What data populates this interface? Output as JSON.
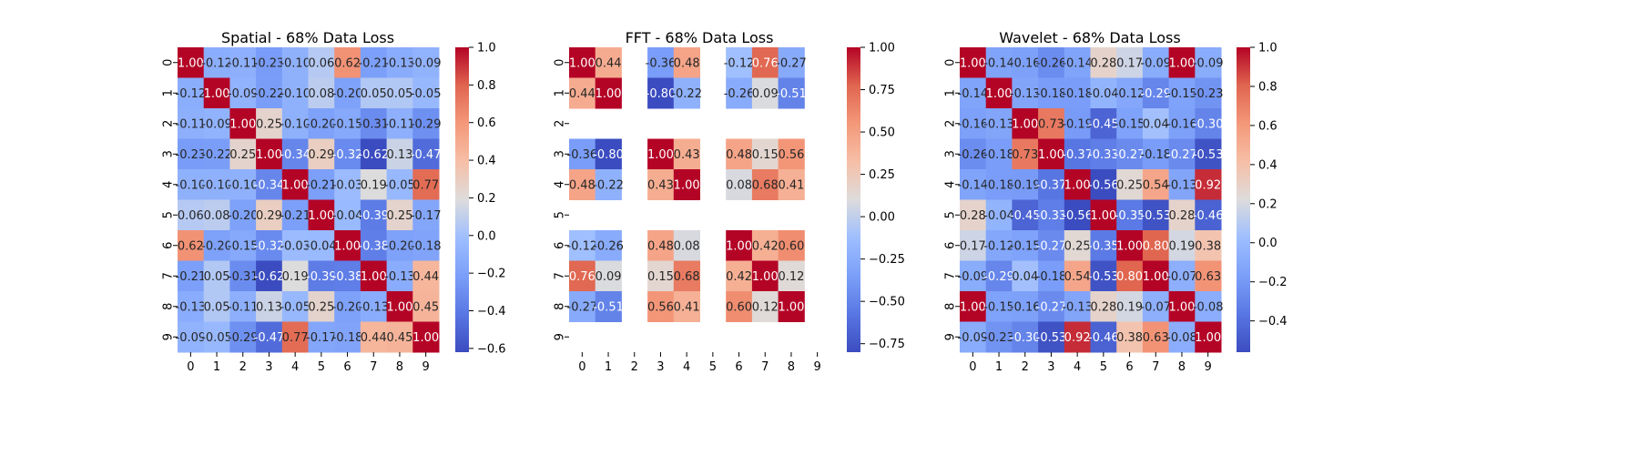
{
  "chart_data": [
    {
      "type": "heatmap",
      "title": "Spatial - 68% Data Loss",
      "x_categories": [
        "0",
        "1",
        "2",
        "3",
        "4",
        "5",
        "6",
        "7",
        "8",
        "9"
      ],
      "y_categories": [
        "0",
        "1",
        "2",
        "3",
        "4",
        "5",
        "6",
        "7",
        "8",
        "9"
      ],
      "values": [
        [
          1.0,
          -0.12,
          -0.11,
          -0.23,
          -0.1,
          0.06,
          0.62,
          -0.21,
          -0.13,
          -0.09
        ],
        [
          -0.12,
          1.0,
          -0.09,
          -0.22,
          -0.1,
          0.08,
          -0.2,
          0.05,
          0.05,
          -0.05
        ],
        [
          -0.11,
          -0.09,
          1.0,
          0.25,
          -0.1,
          -0.2,
          -0.15,
          -0.31,
          -0.11,
          -0.29
        ],
        [
          -0.23,
          -0.22,
          0.25,
          1.0,
          -0.34,
          0.29,
          -0.32,
          -0.62,
          0.13,
          -0.47
        ],
        [
          -0.1,
          -0.1,
          -0.1,
          -0.34,
          1.0,
          -0.21,
          -0.03,
          0.19,
          -0.05,
          0.77
        ],
        [
          0.06,
          0.08,
          -0.2,
          0.29,
          -0.21,
          1.0,
          -0.04,
          -0.39,
          0.25,
          -0.17
        ],
        [
          0.62,
          -0.2,
          -0.15,
          -0.32,
          -0.03,
          -0.04,
          1.0,
          -0.38,
          -0.2,
          -0.18
        ],
        [
          -0.21,
          0.05,
          -0.31,
          -0.62,
          0.19,
          -0.39,
          -0.38,
          1.0,
          -0.13,
          0.44
        ],
        [
          -0.13,
          0.05,
          -0.11,
          0.13,
          -0.05,
          0.25,
          -0.2,
          -0.13,
          1.0,
          0.45
        ],
        [
          -0.09,
          -0.05,
          -0.29,
          -0.47,
          0.77,
          -0.17,
          -0.18,
          0.44,
          0.45,
          1.0
        ]
      ],
      "vmin": -0.62,
      "vmax": 1.0,
      "colorbar_ticks": [
        "-0.6",
        "-0.4",
        "-0.2",
        "0.0",
        "0.2",
        "0.4",
        "0.6",
        "0.8",
        "1.0"
      ],
      "colormap": "coolwarm",
      "annotate": true
    },
    {
      "type": "heatmap",
      "title": "FFT - 68% Data Loss",
      "x_categories": [
        "0",
        "1",
        "2",
        "3",
        "4",
        "5",
        "6",
        "7",
        "8",
        "9"
      ],
      "y_categories": [
        "0",
        "1",
        "2",
        "3",
        "4",
        "5",
        "6",
        "7",
        "8",
        "9"
      ],
      "values": [
        [
          1.0,
          0.44,
          null,
          -0.36,
          0.48,
          null,
          -0.12,
          0.76,
          -0.27,
          null
        ],
        [
          0.44,
          1.0,
          null,
          -0.8,
          -0.22,
          null,
          -0.26,
          0.09,
          -0.51,
          null
        ],
        [
          null,
          null,
          null,
          null,
          null,
          null,
          null,
          null,
          null,
          null
        ],
        [
          -0.36,
          -0.8,
          null,
          1.0,
          0.43,
          null,
          0.48,
          0.15,
          0.56,
          null
        ],
        [
          0.48,
          -0.22,
          null,
          0.43,
          1.0,
          null,
          0.08,
          0.68,
          0.41,
          null
        ],
        [
          null,
          null,
          null,
          null,
          null,
          null,
          null,
          null,
          null,
          null
        ],
        [
          -0.12,
          -0.26,
          null,
          0.48,
          0.08,
          null,
          1.0,
          0.42,
          0.6,
          null
        ],
        [
          0.76,
          0.09,
          null,
          0.15,
          0.68,
          null,
          0.42,
          1.0,
          0.12,
          null
        ],
        [
          -0.27,
          -0.51,
          null,
          0.56,
          0.41,
          null,
          0.6,
          0.12,
          1.0,
          null
        ],
        [
          null,
          null,
          null,
          null,
          null,
          null,
          null,
          null,
          null,
          null
        ]
      ],
      "vmin": -0.8,
      "vmax": 1.0,
      "colorbar_ticks": [
        "-0.75",
        "-0.50",
        "-0.25",
        "0.00",
        "0.25",
        "0.50",
        "0.75",
        "1.00"
      ],
      "colormap": "coolwarm",
      "annotate": true
    },
    {
      "type": "heatmap",
      "title": "Wavelet - 68% Data Loss",
      "x_categories": [
        "0",
        "1",
        "2",
        "3",
        "4",
        "5",
        "6",
        "7",
        "8",
        "9"
      ],
      "y_categories": [
        "0",
        "1",
        "2",
        "3",
        "4",
        "5",
        "6",
        "7",
        "8",
        "9"
      ],
      "values": [
        [
          1.0,
          -0.14,
          -0.16,
          -0.26,
          -0.14,
          0.28,
          0.17,
          -0.09,
          1.0,
          -0.09
        ],
        [
          -0.14,
          1.0,
          -0.13,
          -0.18,
          -0.18,
          -0.04,
          -0.12,
          -0.29,
          -0.15,
          -0.23
        ],
        [
          -0.16,
          -0.13,
          1.0,
          0.73,
          -0.19,
          -0.45,
          -0.15,
          0.04,
          -0.16,
          -0.3
        ],
        [
          -0.26,
          -0.18,
          0.73,
          1.0,
          -0.37,
          -0.33,
          -0.27,
          -0.18,
          -0.27,
          -0.53
        ],
        [
          -0.14,
          -0.18,
          -0.19,
          -0.37,
          1.0,
          -0.56,
          0.25,
          0.54,
          -0.13,
          0.92
        ],
        [
          0.28,
          -0.04,
          -0.45,
          -0.33,
          -0.56,
          1.0,
          -0.35,
          -0.53,
          0.28,
          -0.46
        ],
        [
          0.17,
          -0.12,
          -0.15,
          -0.27,
          0.25,
          -0.35,
          1.0,
          0.8,
          0.19,
          0.38
        ],
        [
          -0.09,
          -0.29,
          0.04,
          -0.18,
          0.54,
          -0.53,
          0.8,
          1.0,
          -0.07,
          0.63
        ],
        [
          1.0,
          -0.15,
          -0.16,
          -0.27,
          -0.13,
          0.28,
          0.19,
          -0.07,
          1.0,
          -0.08
        ],
        [
          -0.09,
          -0.23,
          -0.3,
          -0.53,
          0.92,
          -0.46,
          0.38,
          0.63,
          -0.08,
          1.0
        ]
      ],
      "vmin": -0.56,
      "vmax": 1.0,
      "colorbar_ticks": [
        "-0.4",
        "-0.2",
        "0.0",
        "0.2",
        "0.4",
        "0.6",
        "0.8",
        "1.0"
      ],
      "colormap": "coolwarm",
      "annotate": true
    }
  ]
}
